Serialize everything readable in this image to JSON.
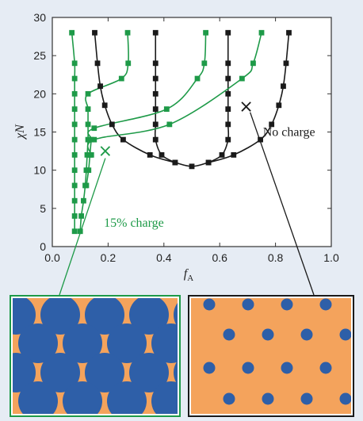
{
  "chart_data": {
    "type": "line",
    "title": "",
    "xlabel": "f",
    "xlabel_sub": "A",
    "ylabel": "χN",
    "xlim": [
      0.0,
      1.0
    ],
    "ylim": [
      0,
      30
    ],
    "xticks": [
      "0.0",
      "0.2",
      "0.4",
      "0.6",
      "0.8",
      "1.0"
    ],
    "yticks": [
      "0",
      "5",
      "10",
      "15",
      "20",
      "25",
      "30"
    ],
    "xtick_values": [
      0.0,
      0.2,
      0.4,
      0.6,
      0.8,
      1.0
    ],
    "ytick_values": [
      0,
      5,
      10,
      15,
      20,
      25,
      30
    ],
    "grid": false,
    "colors": {
      "no_charge": "#1a1a1a",
      "charged": "#1e9a48",
      "matrix": "#f4a35c",
      "domains": "#2e5fa8"
    },
    "annotations": [
      {
        "name": "no-charge-label",
        "text": "No charge",
        "color": "#1a1a1a",
        "x": 0.755,
        "y": 14.5
      },
      {
        "name": "charged-label",
        "text": "15% charge",
        "color": "#1e9a48",
        "x": 0.185,
        "y": 2.6
      }
    ],
    "markers": [
      {
        "name": "charged-state-marker",
        "symbol": "×",
        "color": "#1e9a48",
        "x": 0.19,
        "y": 12.4
      },
      {
        "name": "uncharged-state-marker",
        "symbol": "×",
        "color": "#1a1a1a",
        "x": 0.695,
        "y": 18.2
      }
    ],
    "series": [
      {
        "group": "no_charge",
        "points": [
          [
            0.152,
            28
          ],
          [
            0.162,
            24
          ],
          [
            0.172,
            21
          ],
          [
            0.188,
            18.5
          ],
          [
            0.214,
            16
          ],
          [
            0.254,
            14
          ],
          [
            0.35,
            12
          ],
          [
            0.44,
            11
          ],
          [
            0.5,
            10.5
          ],
          [
            0.56,
            11
          ],
          [
            0.65,
            12
          ],
          [
            0.746,
            14
          ],
          [
            0.786,
            16
          ],
          [
            0.812,
            18.5
          ],
          [
            0.828,
            21
          ],
          [
            0.838,
            24
          ],
          [
            0.848,
            28
          ]
        ]
      },
      {
        "group": "no_charge",
        "points": [
          [
            0.37,
            28
          ],
          [
            0.37,
            24
          ],
          [
            0.37,
            22
          ],
          [
            0.37,
            20
          ],
          [
            0.37,
            18
          ],
          [
            0.37,
            16
          ],
          [
            0.37,
            14
          ],
          [
            0.392,
            12
          ],
          [
            0.44,
            11
          ]
        ]
      },
      {
        "group": "no_charge",
        "points": [
          [
            0.63,
            28
          ],
          [
            0.63,
            24
          ],
          [
            0.63,
            22
          ],
          [
            0.63,
            20
          ],
          [
            0.63,
            18
          ],
          [
            0.63,
            16
          ],
          [
            0.63,
            14
          ],
          [
            0.608,
            12
          ],
          [
            0.56,
            11
          ]
        ]
      },
      {
        "group": "charged",
        "points": [
          [
            0.07,
            28
          ],
          [
            0.08,
            24
          ],
          [
            0.08,
            22
          ],
          [
            0.08,
            20
          ],
          [
            0.08,
            18
          ],
          [
            0.08,
            16
          ],
          [
            0.08,
            14
          ],
          [
            0.08,
            12
          ],
          [
            0.08,
            10
          ],
          [
            0.08,
            8
          ],
          [
            0.08,
            6
          ],
          [
            0.08,
            4
          ],
          [
            0.08,
            2
          ]
        ]
      },
      {
        "group": "charged",
        "points": [
          [
            0.27,
            28
          ],
          [
            0.272,
            24
          ],
          [
            0.248,
            22
          ],
          [
            0.128,
            20
          ],
          [
            0.128,
            18
          ],
          [
            0.128,
            16
          ],
          [
            0.128,
            14
          ],
          [
            0.125,
            12
          ],
          [
            0.122,
            10
          ],
          [
            0.118,
            8
          ],
          [
            0.112,
            6
          ],
          [
            0.104,
            4
          ],
          [
            0.1,
            2
          ]
        ]
      },
      {
        "group": "charged",
        "points": [
          [
            0.55,
            28
          ],
          [
            0.545,
            24
          ],
          [
            0.52,
            22
          ],
          [
            0.41,
            18
          ],
          [
            0.15,
            15.5
          ],
          [
            0.14,
            14
          ],
          [
            0.135,
            12
          ],
          [
            0.13,
            10
          ],
          [
            0.122,
            8
          ]
        ]
      },
      {
        "group": "charged",
        "points": [
          [
            0.75,
            28
          ],
          [
            0.72,
            24
          ],
          [
            0.68,
            22
          ],
          [
            0.42,
            16
          ],
          [
            0.15,
            14
          ],
          [
            0.14,
            12
          ]
        ]
      }
    ]
  },
  "insets": {
    "left": {
      "name": "charged-morphology-inset",
      "border": "#1e9a48",
      "matrix": "#f4a35c",
      "domain": "#2e5fa8"
    },
    "right": {
      "name": "uncharged-morphology-inset",
      "border": "#1a1a1a",
      "matrix": "#f4a35c",
      "domain": "#2e5fa8"
    }
  }
}
